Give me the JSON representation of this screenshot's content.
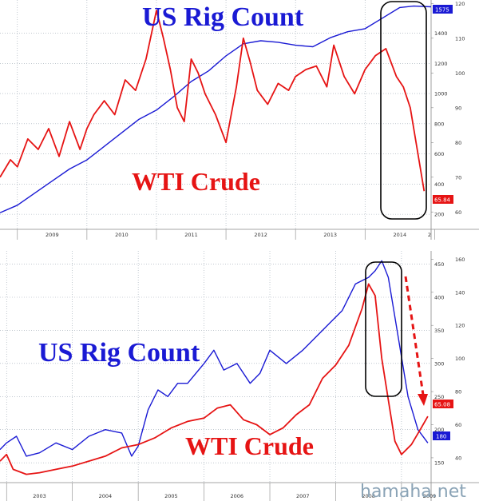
{
  "watermark": "hamaha.net",
  "chart_data": [
    {
      "type": "line",
      "title": "",
      "annotations": [
        "US Rig Count",
        "WTI Crude"
      ],
      "x_tick_labels": [
        "2009",
        "2010",
        "2011",
        "2012",
        "2013",
        "2014",
        "2"
      ],
      "x_range": [
        2008.75,
        2014.95
      ],
      "rig_axis": {
        "ylim": [
          100,
          1620
        ],
        "ticks": [
          "200",
          "400",
          "600",
          "800",
          "1000",
          "1200",
          "1400"
        ]
      },
      "crude_axis": {
        "ylim": [
          55,
          121
        ],
        "ticks": [
          "60",
          "70",
          "80",
          "90",
          "100",
          "110",
          "120"
        ]
      },
      "last_values": {
        "rig": "1575",
        "crude": "65.84"
      },
      "colors": {
        "rig": "#1a1ad4",
        "crude": "#e61414",
        "rig_badge": "#1a1ad4",
        "crude_badge": "#e61414"
      },
      "series": [
        {
          "key": "rig",
          "x": [
            2008.75,
            2009.0,
            2009.25,
            2009.5,
            2009.75,
            2010.0,
            2010.25,
            2010.5,
            2010.75,
            2011.0,
            2011.25,
            2011.5,
            2011.75,
            2012.0,
            2012.25,
            2012.5,
            2012.75,
            2013.0,
            2013.25,
            2013.5,
            2013.75,
            2014.0,
            2014.25,
            2014.5,
            2014.7,
            2014.95
          ],
          "values": [
            210,
            260,
            340,
            420,
            500,
            560,
            650,
            740,
            830,
            890,
            980,
            1080,
            1150,
            1250,
            1330,
            1350,
            1340,
            1320,
            1310,
            1370,
            1410,
            1430,
            1500,
            1570,
            1580,
            1575
          ]
        },
        {
          "key": "crude",
          "x": [
            2008.75,
            2008.9,
            2009.0,
            2009.15,
            2009.3,
            2009.45,
            2009.6,
            2009.75,
            2009.9,
            2010.0,
            2010.1,
            2010.25,
            2010.4,
            2010.55,
            2010.7,
            2010.85,
            2011.0,
            2011.1,
            2011.2,
            2011.3,
            2011.4,
            2011.5,
            2011.6,
            2011.7,
            2011.85,
            2012.0,
            2012.15,
            2012.25,
            2012.35,
            2012.45,
            2012.6,
            2012.75,
            2012.9,
            2013.0,
            2013.15,
            2013.3,
            2013.45,
            2013.55,
            2013.7,
            2013.85,
            2014.0,
            2014.15,
            2014.3,
            2014.45,
            2014.55,
            2014.65,
            2014.75,
            2014.85
          ],
          "values": [
            70,
            75,
            73,
            81,
            78,
            84,
            76,
            86,
            78,
            84,
            88,
            92,
            88,
            98,
            95,
            104,
            118,
            110,
            101,
            90,
            86,
            104,
            100,
            94,
            88,
            80,
            96,
            110,
            103,
            95,
            91,
            97,
            95,
            99,
            101,
            102,
            96,
            108,
            99,
            94,
            101,
            105,
            107,
            99,
            96,
            90,
            78,
            66
          ]
        }
      ]
    },
    {
      "type": "line",
      "title": "",
      "annotations": [
        "US Rig Count",
        "WTI Crude"
      ],
      "x_tick_labels": [
        "2003",
        "2004",
        "2005",
        "2006",
        "2007",
        "2008",
        "2009"
      ],
      "x_range": [
        2002.9,
        2009.45
      ],
      "rig_axis": {
        "ylim": [
          120,
          470
        ],
        "ticks": [
          "150",
          "200",
          "250",
          "300",
          "350",
          "400",
          "450"
        ]
      },
      "crude_axis": {
        "ylim": [
          25,
          165
        ],
        "ticks": [
          "40",
          "60",
          "80",
          "100",
          "120",
          "140",
          "160"
        ]
      },
      "last_values": {
        "rig": "180",
        "crude": "65.08"
      },
      "colors": {
        "rig": "#1a1ad4",
        "crude": "#e61414",
        "rig_badge": "#1a1ad4",
        "crude_badge": "#e61414"
      },
      "series": [
        {
          "key": "rig",
          "x": [
            2002.9,
            2003.0,
            2003.15,
            2003.3,
            2003.5,
            2003.75,
            2004.0,
            2004.25,
            2004.5,
            2004.75,
            2004.9,
            2005.0,
            2005.15,
            2005.3,
            2005.45,
            2005.6,
            2005.75,
            2006.0,
            2006.15,
            2006.3,
            2006.5,
            2006.7,
            2006.85,
            2007.0,
            2007.25,
            2007.5,
            2007.7,
            2007.9,
            2008.1,
            2008.3,
            2008.5,
            2008.6,
            2008.7,
            2008.8,
            2008.95,
            2009.1,
            2009.25,
            2009.4
          ],
          "values": [
            170,
            180,
            190,
            160,
            165,
            180,
            170,
            190,
            200,
            195,
            160,
            175,
            230,
            260,
            250,
            270,
            270,
            300,
            320,
            290,
            300,
            270,
            285,
            320,
            300,
            320,
            340,
            360,
            380,
            420,
            430,
            440,
            455,
            430,
            340,
            250,
            200,
            180
          ]
        },
        {
          "key": "crude",
          "x": [
            2002.9,
            2003.0,
            2003.1,
            2003.3,
            2003.5,
            2003.75,
            2004.0,
            2004.25,
            2004.5,
            2004.75,
            2005.0,
            2005.25,
            2005.5,
            2005.75,
            2006.0,
            2006.2,
            2006.4,
            2006.6,
            2006.8,
            2007.0,
            2007.2,
            2007.4,
            2007.6,
            2007.8,
            2008.0,
            2008.2,
            2008.4,
            2008.5,
            2008.6,
            2008.7,
            2008.8,
            2008.9,
            2009.0,
            2009.15,
            2009.3,
            2009.4
          ],
          "values": [
            38,
            42,
            33,
            30,
            31,
            33,
            35,
            38,
            41,
            46,
            48,
            52,
            58,
            62,
            64,
            70,
            72,
            63,
            60,
            54,
            58,
            66,
            72,
            88,
            96,
            108,
            130,
            145,
            138,
            100,
            75,
            50,
            42,
            48,
            58,
            65
          ]
        }
      ]
    }
  ]
}
